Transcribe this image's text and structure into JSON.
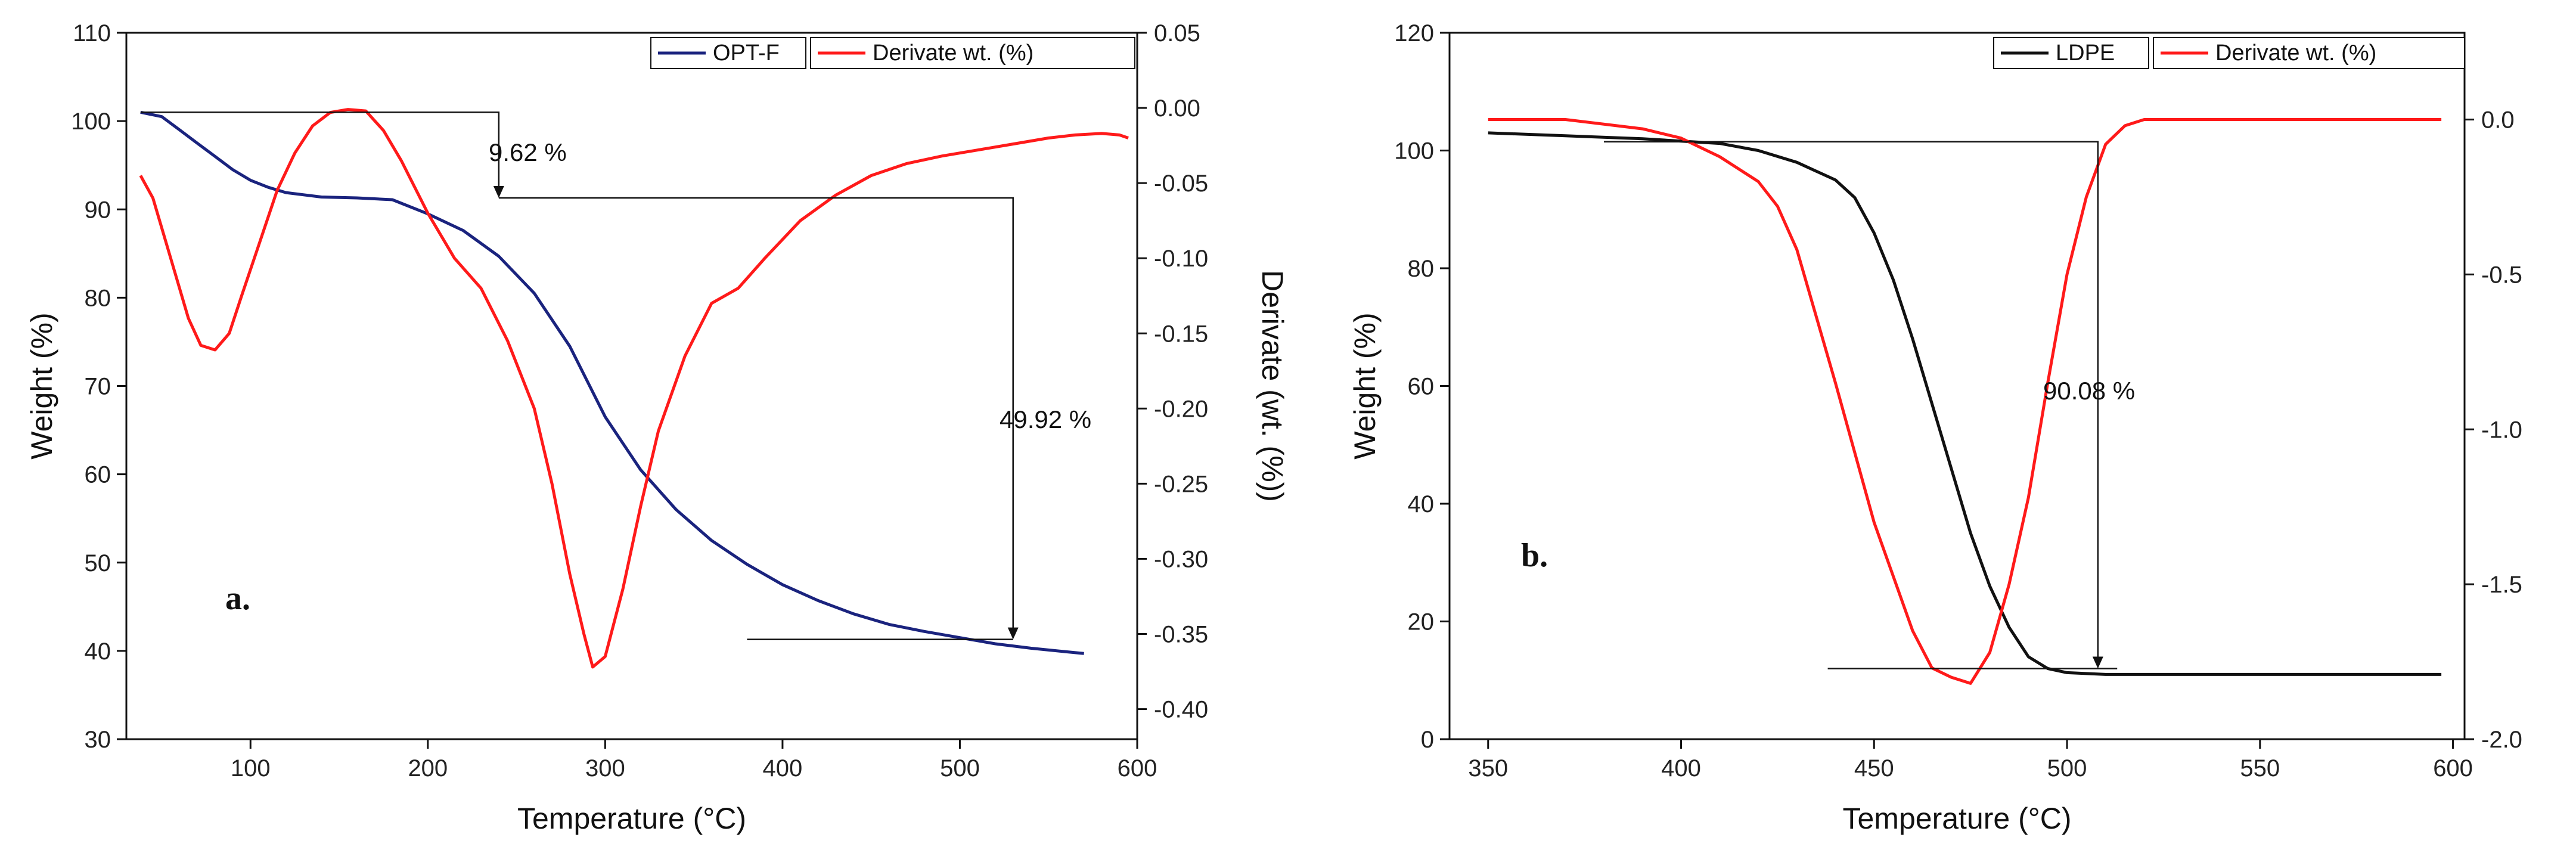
{
  "chart_data": [
    {
      "type": "line",
      "panel_label": "a.",
      "xlabel": "Temperature (°C)",
      "ylabel": "Weight (%)",
      "y2label": "Derivate (wt. (%))",
      "xlim": [
        30,
        600
      ],
      "ylim": [
        30,
        110
      ],
      "y2lim": [
        -0.42,
        0.05
      ],
      "xticks": [
        100,
        200,
        300,
        400,
        500,
        600
      ],
      "yticks": [
        30,
        40,
        50,
        60,
        70,
        80,
        90,
        100,
        110
      ],
      "y2ticks": [
        0.05,
        0.0,
        -0.05,
        -0.1,
        -0.15,
        -0.2,
        -0.25,
        -0.3,
        -0.35,
        -0.4
      ],
      "xtick_labels": [
        "100",
        "200",
        "300",
        "400",
        "500",
        "600"
      ],
      "ytick_labels": [
        "30",
        "40",
        "50",
        "60",
        "70",
        "80",
        "90",
        "100",
        "110"
      ],
      "y2tick_labels": [
        "0.05",
        "0.00",
        "-0.05",
        "-0.10",
        "-0.15",
        "-0.20",
        "-0.25",
        "-0.30",
        "-0.35",
        "-0.40"
      ],
      "legend_placement": "top-right",
      "grid": false,
      "series": [
        {
          "name": "OPT-F",
          "axis": "left",
          "color": "#1a237e",
          "x": [
            38,
            50,
            60,
            70,
            80,
            90,
            100,
            110,
            120,
            140,
            160,
            180,
            200,
            220,
            240,
            260,
            280,
            300,
            320,
            340,
            360,
            380,
            400,
            420,
            440,
            460,
            480,
            500,
            520,
            540,
            560,
            570
          ],
          "y": [
            101,
            100.5,
            99,
            97.5,
            96,
            94.5,
            93.3,
            92.5,
            91.9,
            91.4,
            91.3,
            91.1,
            89.5,
            87.6,
            84.7,
            80.5,
            74.5,
            66.5,
            60.5,
            56,
            52.5,
            49.8,
            47.5,
            45.7,
            44.2,
            43,
            42.2,
            41.5,
            40.8,
            40.3,
            39.9,
            39.7
          ]
        },
        {
          "name": "Derivate wt. (%)",
          "axis": "right",
          "color": "#ff1a1a",
          "x": [
            38,
            45,
            55,
            65,
            72,
            80,
            88,
            95,
            105,
            115,
            125,
            135,
            145,
            155,
            165,
            175,
            185,
            200,
            215,
            230,
            245,
            260,
            270,
            280,
            288,
            293,
            300,
            310,
            320,
            330,
            345,
            360,
            375,
            390,
            410,
            430,
            450,
            470,
            490,
            510,
            530,
            550,
            565,
            580,
            590,
            595
          ],
          "y": [
            -0.045,
            -0.06,
            -0.1,
            -0.14,
            -0.158,
            -0.161,
            -0.15,
            -0.125,
            -0.09,
            -0.055,
            -0.03,
            -0.012,
            -0.003,
            -0.001,
            -0.002,
            -0.015,
            -0.035,
            -0.07,
            -0.1,
            -0.12,
            -0.155,
            -0.2,
            -0.25,
            -0.31,
            -0.35,
            -0.372,
            -0.365,
            -0.32,
            -0.265,
            -0.215,
            -0.165,
            -0.13,
            -0.12,
            -0.1,
            -0.075,
            -0.058,
            -0.045,
            -0.037,
            -0.032,
            -0.028,
            -0.024,
            -0.02,
            -0.018,
            -0.017,
            -0.018,
            -0.02
          ]
        }
      ],
      "annotations": [
        {
          "text": "9.62 %",
          "from": [
            38,
            101
          ],
          "via_x": 240,
          "to": [
            240,
            91.3
          ]
        },
        {
          "text": "49.92 %",
          "from": [
            240,
            91.3
          ],
          "via_x": 530,
          "to": [
            530,
            41.3
          ],
          "baseline": [
            380,
            530,
            41.3
          ]
        }
      ]
    },
    {
      "type": "line",
      "panel_label": "b.",
      "xlabel": "Temperature (°C)",
      "ylabel": "Weight (%)",
      "y2label": "Derivate (wt. (%))",
      "xlim": [
        340,
        603
      ],
      "ylim": [
        0,
        120
      ],
      "y2lim": [
        -2.0,
        0.28
      ],
      "xticks": [
        350,
        400,
        450,
        500,
        550,
        600
      ],
      "yticks": [
        0,
        20,
        40,
        60,
        80,
        100,
        120
      ],
      "y2ticks": [
        0.0,
        -0.5,
        -1.0,
        -1.5,
        -2.0
      ],
      "xtick_labels": [
        "350",
        "400",
        "450",
        "500",
        "550",
        "600"
      ],
      "ytick_labels": [
        "0",
        "20",
        "40",
        "60",
        "80",
        "100",
        "120"
      ],
      "y2tick_labels": [
        "0.0",
        "-0.5",
        "-1.0",
        "-1.5",
        "-2.0"
      ],
      "legend_placement": "top-right",
      "grid": false,
      "series": [
        {
          "name": "LDPE",
          "axis": "left",
          "color": "#111111",
          "x": [
            350,
            370,
            390,
            410,
            420,
            430,
            440,
            445,
            450,
            455,
            460,
            465,
            470,
            475,
            480,
            485,
            490,
            495,
            500,
            510,
            530,
            560,
            597
          ],
          "y": [
            103,
            102.5,
            102,
            101.2,
            100,
            98,
            95,
            92,
            86,
            78,
            68,
            57,
            46,
            35,
            26,
            19,
            14,
            12,
            11.3,
            11,
            11,
            11,
            11
          ]
        },
        {
          "name": "Derivate wt. (%)",
          "axis": "right",
          "color": "#ff1a1a",
          "x": [
            350,
            370,
            390,
            400,
            410,
            420,
            425,
            430,
            440,
            450,
            460,
            465,
            470,
            475,
            480,
            485,
            490,
            495,
            500,
            505,
            510,
            515,
            520,
            540,
            560,
            597
          ],
          "y": [
            0.0,
            0.0,
            -0.03,
            -0.06,
            -0.12,
            -0.2,
            -0.28,
            -0.42,
            -0.85,
            -1.3,
            -1.65,
            -1.77,
            -1.8,
            -1.82,
            -1.72,
            -1.5,
            -1.22,
            -0.85,
            -0.5,
            -0.25,
            -0.08,
            -0.02,
            0.0,
            0.0,
            0.0,
            0.0
          ]
        }
      ],
      "annotations": [
        {
          "text": "90.08 %",
          "from": [
            380,
            101.5
          ],
          "via_x": 508,
          "to": [
            508,
            12
          ],
          "baseline": [
            438,
            513,
            12
          ]
        }
      ]
    }
  ]
}
